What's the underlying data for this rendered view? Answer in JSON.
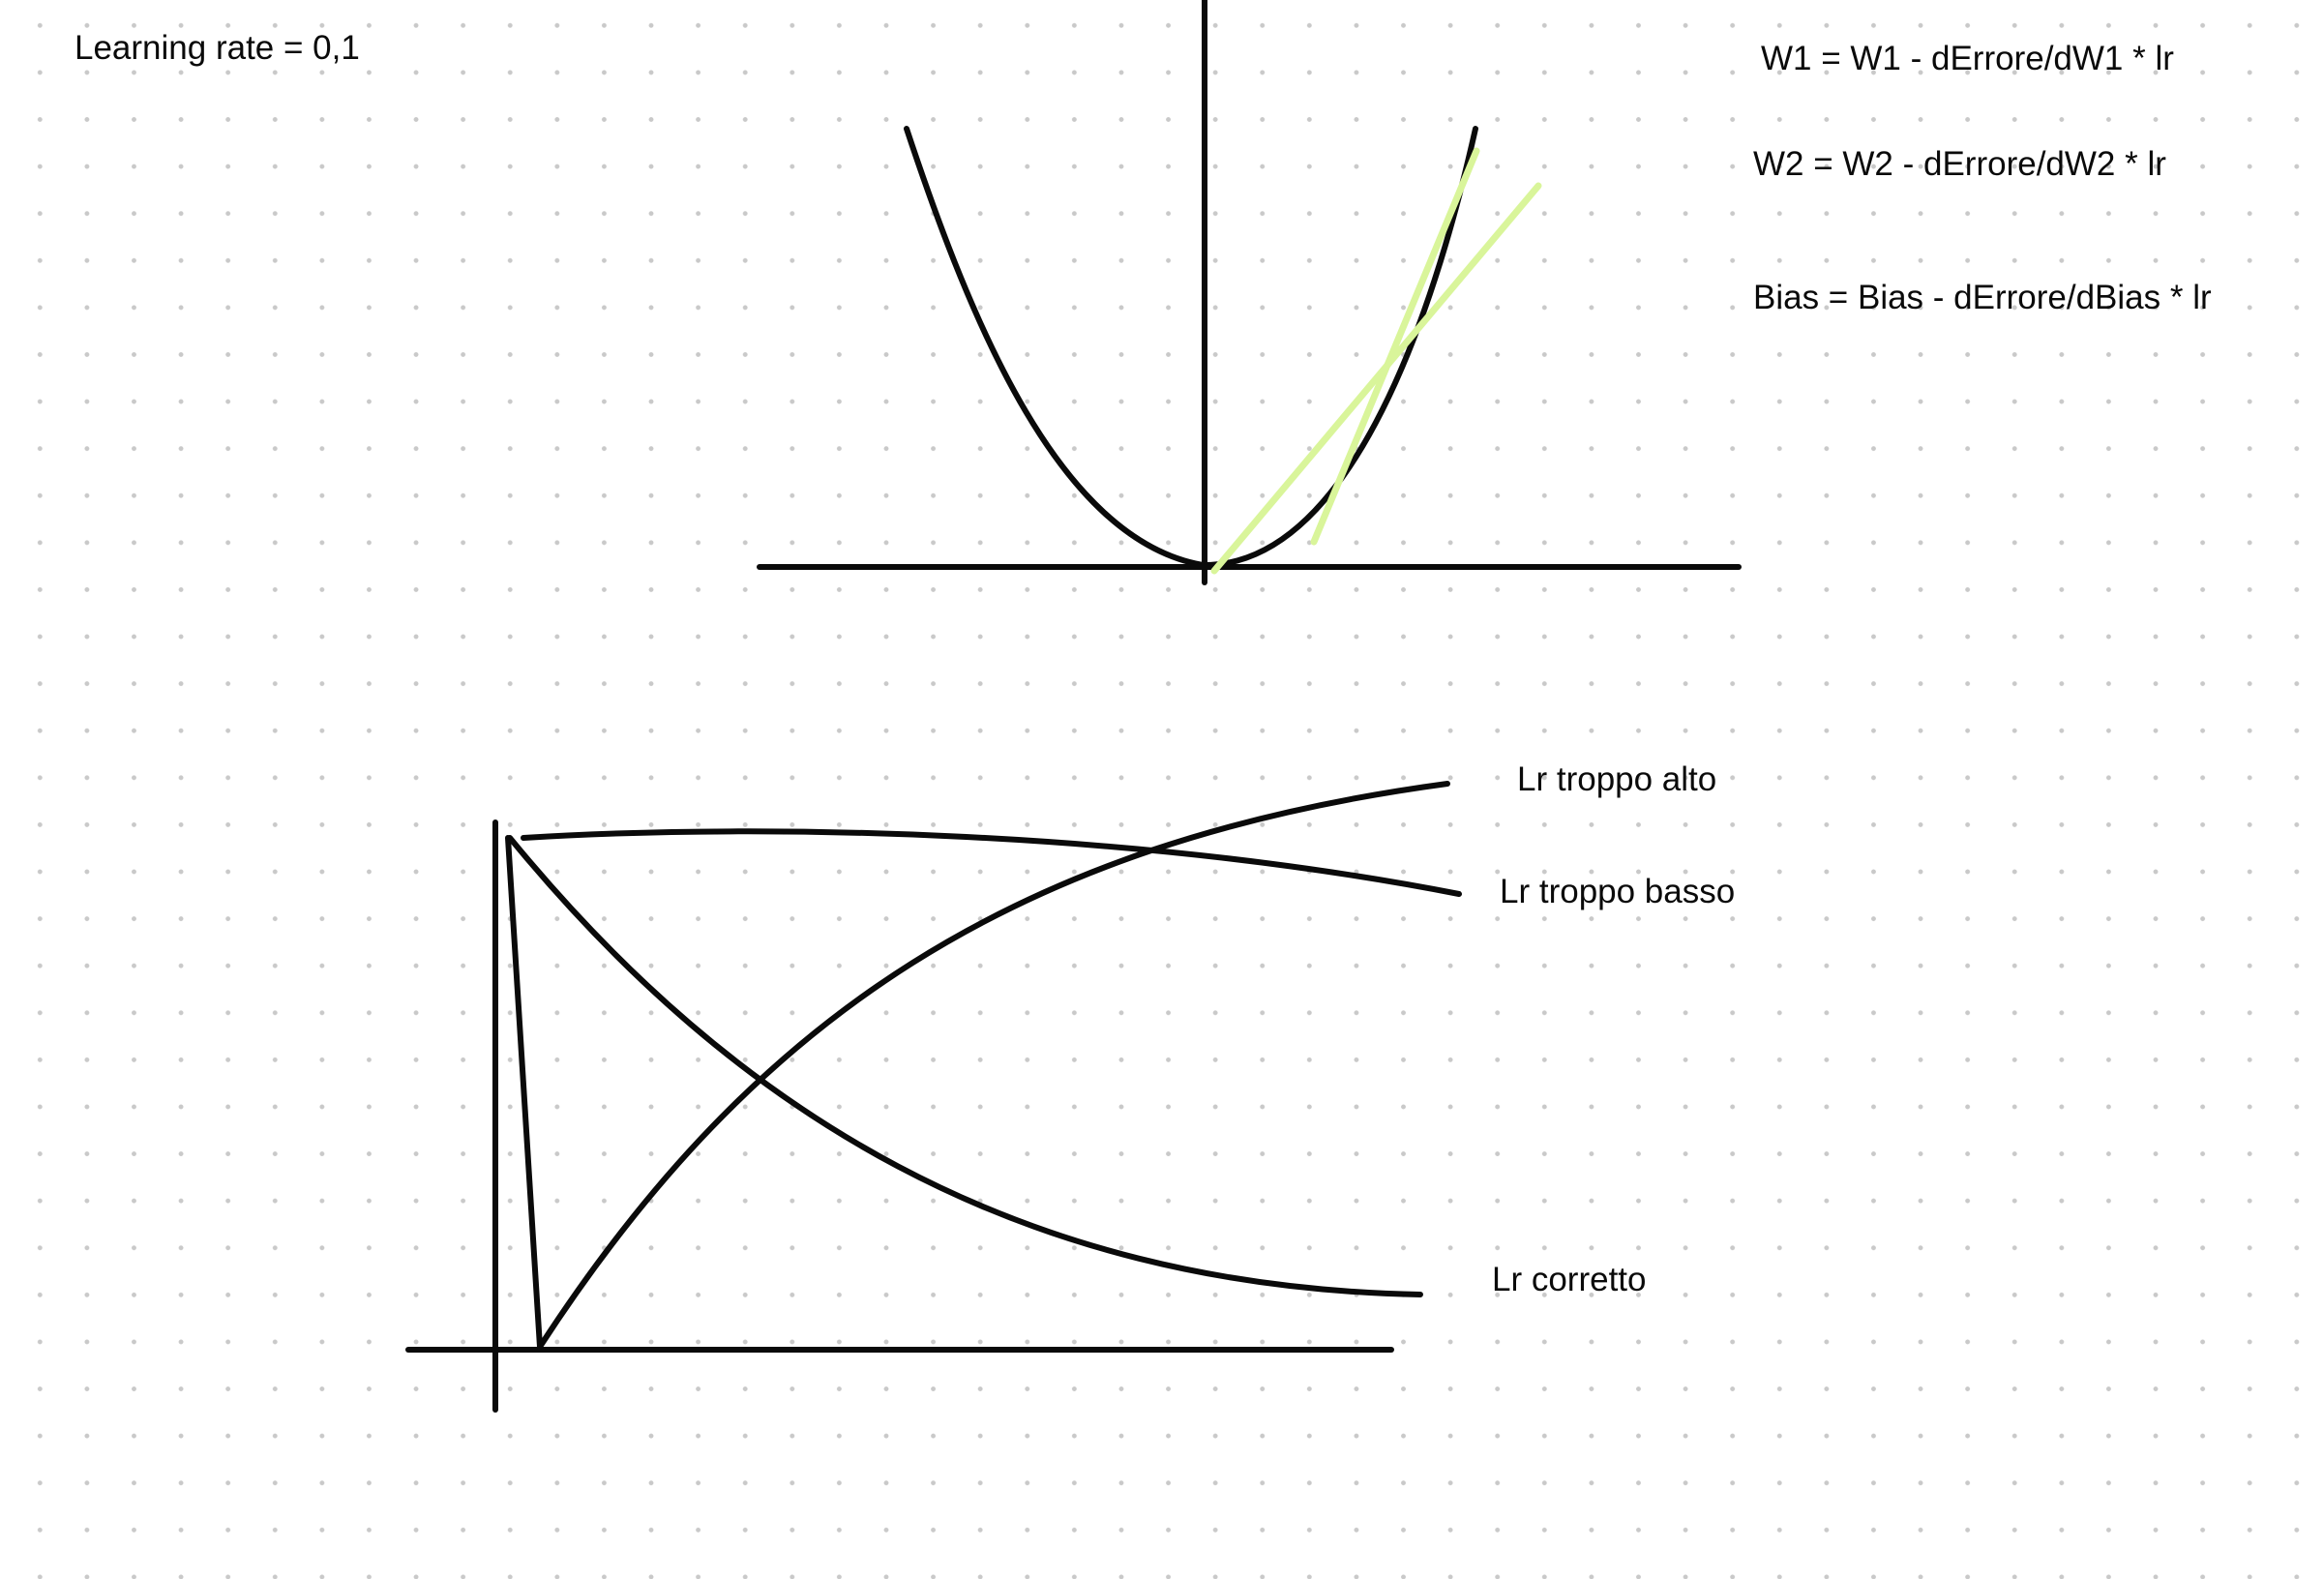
{
  "notes": {
    "learning_rate": "Learning rate = 0,1",
    "w1_update": "W1 = W1 - dErrore/dW1 * lr",
    "w2_update": "W2 = W2 - dErrore/dW2 * lr",
    "bias_update": "Bias = Bias - dErrore/dBias * lr"
  },
  "curve_labels": {
    "high": "Lr troppo alto",
    "low": "Lr troppo basso",
    "correct": "Lr corretto"
  },
  "colors": {
    "ink": "#0a0a0a",
    "highlighter": "#d9f59a",
    "grid_dots": "#c9c9c9",
    "background": "#ffffff"
  }
}
